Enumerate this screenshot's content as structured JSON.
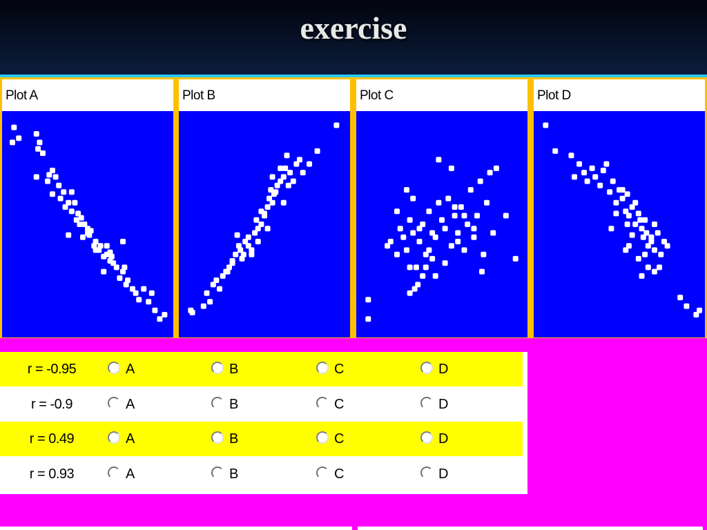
{
  "title": "exercise",
  "colors": {
    "plot_bg": "#0000ff",
    "point": "#ffffff",
    "frame": "#ffbf00",
    "background": "#ff00ff",
    "highlight_row": "#ffff00"
  },
  "chart_data": [
    {
      "type": "scatter",
      "title": "Plot A",
      "xlim": [
        0,
        100
      ],
      "ylim": [
        0,
        100
      ],
      "x": [
        4,
        3,
        7,
        18,
        20,
        19,
        22,
        25,
        18,
        26,
        28,
        30,
        32,
        28,
        35,
        33,
        38,
        36,
        40,
        42,
        40,
        44,
        45,
        43,
        38,
        46,
        48,
        50,
        52,
        47,
        51,
        55,
        50,
        54,
        57,
        58,
        60,
        55,
        62,
        64,
        60,
        66,
        68,
        65,
        70,
        72,
        74,
        75,
        73,
        78,
        64,
        62,
        72,
        80,
        82,
        85,
        88,
        90,
        92,
        95,
        98
      ],
      "y": [
        95,
        88,
        90,
        92,
        88,
        85,
        83,
        70,
        72,
        73,
        75,
        72,
        68,
        64,
        65,
        62,
        60,
        58,
        65,
        60,
        56,
        55,
        50,
        52,
        45,
        53,
        50,
        48,
        47,
        44,
        45,
        42,
        46,
        40,
        38,
        40,
        35,
        38,
        36,
        33,
        28,
        32,
        30,
        35,
        25,
        28,
        22,
        24,
        30,
        20,
        37,
        40,
        42,
        18,
        15,
        20,
        14,
        18,
        10,
        6,
        8
      ]
    },
    {
      "type": "scatter",
      "title": "Plot B",
      "xlim": [
        0,
        100
      ],
      "ylim": [
        0,
        100
      ],
      "x": [
        5,
        4,
        12,
        14,
        16,
        18,
        20,
        22,
        24,
        26,
        28,
        30,
        32,
        27,
        35,
        34,
        37,
        38,
        40,
        42,
        44,
        46,
        40,
        48,
        45,
        50,
        48,
        52,
        55,
        50,
        53,
        56,
        54,
        58,
        60,
        57,
        62,
        65,
        63,
        66,
        70,
        72,
        68,
        74,
        64,
        60,
        55,
        78,
        83,
        95,
        52,
        46,
        42,
        36,
        33,
        30,
        62
      ],
      "y": [
        9,
        10,
        12,
        18,
        14,
        22,
        24,
        20,
        26,
        28,
        30,
        32,
        36,
        28,
        38,
        40,
        36,
        42,
        44,
        38,
        46,
        48,
        40,
        50,
        52,
        54,
        56,
        58,
        60,
        55,
        62,
        64,
        66,
        68,
        70,
        65,
        72,
        68,
        76,
        74,
        78,
        80,
        70,
        74,
        82,
        76,
        72,
        78,
        84,
        96,
        48,
        42,
        36,
        34,
        45,
        33,
        60
      ]
    },
    {
      "type": "scatter",
      "title": "Plot C",
      "xlim": [
        0,
        100
      ],
      "ylim": [
        0,
        100
      ],
      "x": [
        4,
        4,
        16,
        18,
        22,
        24,
        26,
        28,
        30,
        32,
        34,
        36,
        38,
        40,
        42,
        44,
        46,
        48,
        50,
        52,
        54,
        56,
        58,
        60,
        62,
        64,
        66,
        68,
        70,
        72,
        74,
        76,
        78,
        80,
        82,
        84,
        90,
        96,
        33,
        38,
        35,
        40,
        30,
        48,
        56,
        70,
        75,
        28,
        22,
        32,
        36,
        42,
        46,
        52,
        58,
        60,
        64,
        30,
        44
      ],
      "y": [
        15,
        6,
        40,
        42,
        36,
        48,
        44,
        38,
        52,
        46,
        30,
        42,
        50,
        36,
        56,
        34,
        44,
        60,
        52,
        48,
        62,
        40,
        54,
        46,
        58,
        38,
        50,
        66,
        44,
        54,
        70,
        36,
        60,
        74,
        46,
        76,
        54,
        34,
        20,
        26,
        22,
        30,
        18,
        80,
        76,
        48,
        28,
        66,
        56,
        62,
        48,
        38,
        26,
        32,
        58,
        42,
        54,
        30,
        46
      ]
    },
    {
      "type": "scatter",
      "title": "Plot D",
      "xlim": [
        0,
        100
      ],
      "ylim": [
        0,
        100
      ],
      "x": [
        4,
        10,
        20,
        25,
        22,
        28,
        30,
        33,
        35,
        38,
        40,
        42,
        44,
        46,
        48,
        50,
        52,
        54,
        55,
        56,
        58,
        60,
        62,
        63,
        64,
        65,
        66,
        67,
        68,
        70,
        72,
        74,
        60,
        58,
        52,
        48,
        45,
        56,
        66,
        70,
        76,
        78,
        80,
        68,
        64,
        72,
        62,
        55,
        54,
        72,
        75,
        88,
        92,
        98,
        100
      ],
      "y": [
        96,
        84,
        82,
        78,
        72,
        74,
        70,
        76,
        72,
        68,
        75,
        78,
        65,
        70,
        60,
        66,
        62,
        56,
        64,
        54,
        58,
        50,
        55,
        52,
        48,
        44,
        52,
        46,
        40,
        42,
        38,
        46,
        60,
        45,
        66,
        55,
        48,
        40,
        36,
        44,
        36,
        42,
        40,
        30,
        26,
        28,
        34,
        50,
        38,
        50,
        30,
        16,
        12,
        8,
        10
      ]
    }
  ],
  "answers": {
    "rows": [
      {
        "label": "r = -0.95",
        "options": [
          "A",
          "B",
          "C",
          "D"
        ]
      },
      {
        "label": "r = -0.9",
        "options": [
          "A",
          "B",
          "C",
          "D"
        ]
      },
      {
        "label": "r = 0.49",
        "options": [
          "A",
          "B",
          "C",
          "D"
        ]
      },
      {
        "label": "r = 0.93",
        "options": [
          "A",
          "B",
          "C",
          "D"
        ]
      }
    ]
  }
}
